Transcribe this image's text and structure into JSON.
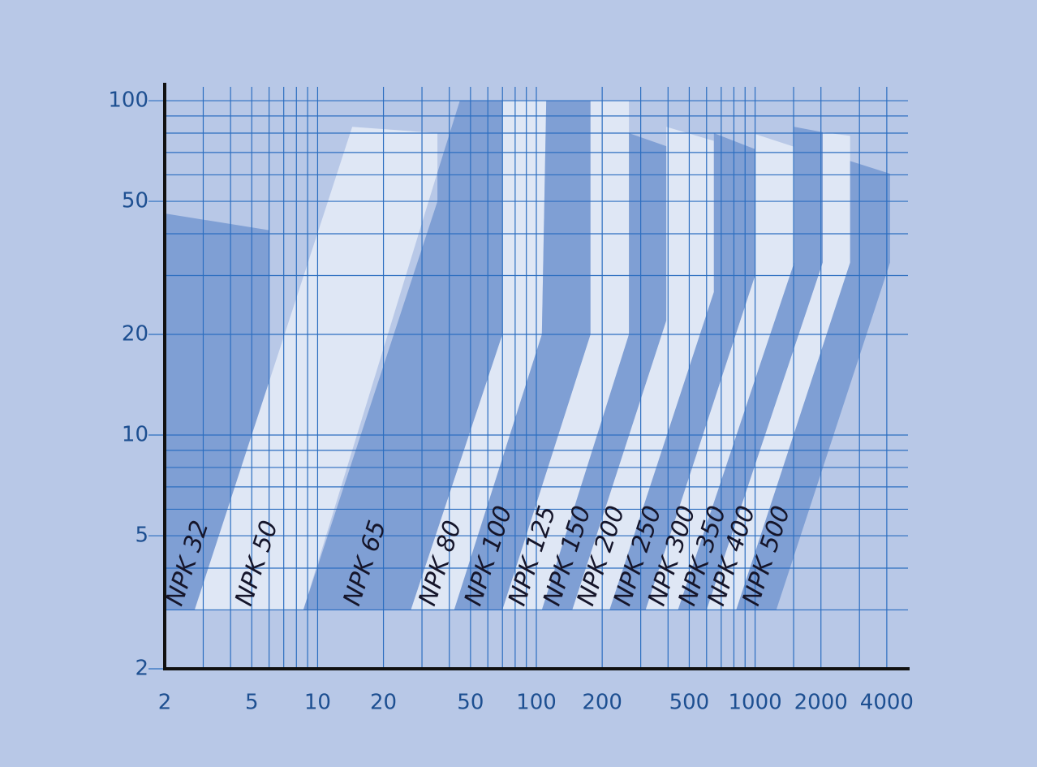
{
  "chart_data": {
    "type": "area",
    "log_x": true,
    "log_y": true,
    "grid": true,
    "xlim": [
      2,
      5000
    ],
    "ylim": [
      2,
      110
    ],
    "xticks": [
      2,
      5,
      10,
      20,
      50,
      100,
      200,
      500,
      1000,
      2000,
      4000
    ],
    "yticks": [
      2,
      5,
      10,
      20,
      50,
      100
    ],
    "xminor": [
      3,
      4,
      6,
      7,
      8,
      9,
      30,
      40,
      60,
      70,
      80,
      90,
      300,
      400,
      600,
      700,
      800,
      900,
      1500,
      3000
    ],
    "yminor": [
      3,
      4,
      6,
      7,
      8,
      9,
      30,
      40,
      60,
      70,
      80,
      90
    ],
    "series": [
      {
        "name": "NPK 32",
        "color": "#7f9fd4",
        "x": [
          2,
          6,
          6,
          2.74,
          2
        ],
        "y": [
          46,
          41,
          14.3,
          3,
          3
        ]
      },
      {
        "name": "NPK 50",
        "color": "#dfe7f5",
        "x": [
          14.4,
          35.3,
          35.3,
          8.6,
          2.74
        ],
        "y": [
          83.5,
          80,
          61,
          3,
          3
        ]
      },
      {
        "name": "NPK 65",
        "color": "#7f9fd4",
        "x": [
          44.7,
          70,
          70,
          26.7,
          8.6,
          35.3,
          35.3
        ],
        "y": [
          100,
          100,
          20,
          3,
          3,
          50,
          61
        ]
      },
      {
        "name": "NPK 80",
        "color": "#dfe7f5",
        "x": [
          70,
          111,
          106,
          42.1,
          26.7,
          70
        ],
        "y": [
          100,
          100,
          20,
          3,
          3,
          20
        ]
      },
      {
        "name": "NPK 100",
        "color": "#7f9fd4",
        "x": [
          111,
          177,
          177,
          70,
          42.1,
          106
        ],
        "y": [
          100,
          100,
          20,
          3,
          3,
          20
        ]
      },
      {
        "name": "NPK 125",
        "color": "#dfe7f5",
        "x": [
          177,
          265,
          265,
          106,
          70,
          177
        ],
        "y": [
          100,
          100,
          20,
          3,
          3,
          20
        ]
      },
      {
        "name": "NPK 150",
        "color": "#7f9fd4",
        "x": [
          265,
          400,
          393,
          146,
          106,
          265
        ],
        "y": [
          80,
          72.8,
          22,
          3,
          3,
          20
        ]
      },
      {
        "name": "NPK 200",
        "color": "#dfe7f5",
        "x": [
          393,
          648,
          648,
          216,
          146,
          393
        ],
        "y": [
          83.5,
          75.8,
          26.8,
          3,
          3,
          22
        ]
      },
      {
        "name": "NPK 250",
        "color": "#7f9fd4",
        "x": [
          648,
          1000,
          1000,
          316,
          216,
          648
        ],
        "y": [
          80,
          71.6,
          30,
          3,
          3,
          26.8
        ]
      },
      {
        "name": "NPK 300",
        "color": "#dfe7f5",
        "x": [
          1000,
          1510,
          1510,
          444,
          316,
          1000
        ],
        "y": [
          79.5,
          72.8,
          32.8,
          3,
          3,
          30
        ]
      },
      {
        "name": "NPK 350",
        "color": "#7f9fd4",
        "x": [
          1510,
          2040,
          2040,
          600,
          444,
          1510
        ],
        "y": [
          83.5,
          80.5,
          32.8,
          3,
          3,
          32.8
        ]
      },
      {
        "name": "NPK 400",
        "color": "#dfe7f5",
        "x": [
          2040,
          2720,
          2720,
          820,
          600,
          2040
        ],
        "y": [
          80.5,
          78.5,
          32.8,
          3,
          3,
          32.8
        ]
      },
      {
        "name": "NPK 500",
        "color": "#7f9fd4",
        "x": [
          2720,
          4140,
          4140,
          1250,
          820,
          2720
        ],
        "y": [
          66,
          60.5,
          32.8,
          3,
          3,
          32.8
        ]
      }
    ]
  }
}
